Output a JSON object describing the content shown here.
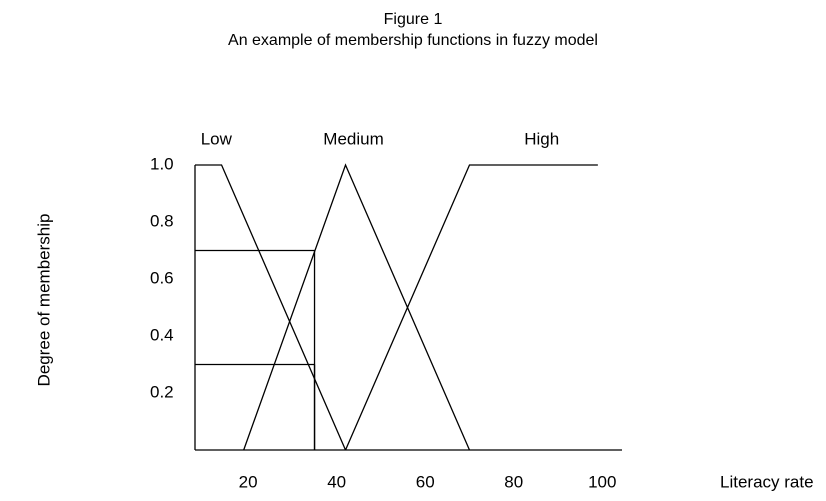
{
  "chart_data": {
    "type": "line",
    "title": "Figure 1",
    "subtitle": "An example of membership functions in fuzzy model",
    "ylabel": "Degree of membership",
    "xlabel": "Literacy rate",
    "series": [
      {
        "name": "Low",
        "color": "#000000",
        "x": [
          8,
          14,
          42
        ],
        "values": [
          1,
          1,
          0
        ]
      },
      {
        "name": "Medium",
        "color": "#000000",
        "x": [
          19,
          42,
          70
        ],
        "values": [
          0,
          1,
          0
        ]
      },
      {
        "name": "High",
        "color": "#000000",
        "x": [
          42,
          70,
          99
        ],
        "values": [
          0,
          1,
          1
        ]
      }
    ],
    "guides": [
      {
        "x": 35,
        "y": 0.7
      },
      {
        "x": 35,
        "y": 0.3
      }
    ],
    "xlim": [
      8,
      104
    ],
    "ylim": [
      0,
      1
    ],
    "xticks": [
      20,
      40,
      60,
      80,
      100
    ],
    "yticks": [
      {
        "value": 1,
        "label": "1.0"
      },
      0.8,
      0.6,
      0.4,
      0.2
    ]
  }
}
